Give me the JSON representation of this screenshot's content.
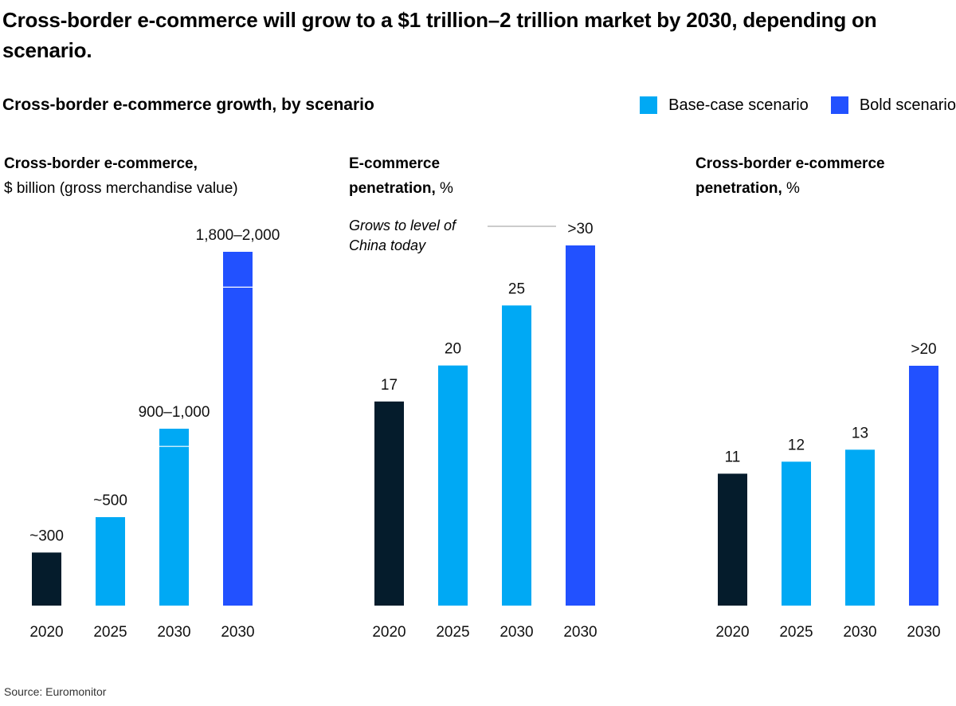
{
  "title": "Cross-border e-commerce will grow to a $1 trillion–2 trillion market by 2030, depending on scenario.",
  "subtitle": "Cross-border e-commerce growth, by scenario",
  "legend": [
    {
      "label": "Base-case scenario",
      "color": "#00A9F4"
    },
    {
      "label": "Bold scenario",
      "color": "#2251FF"
    }
  ],
  "colors": {
    "actual": "#051C2C",
    "base": "#00A9F4",
    "bold": "#2251FF"
  },
  "source": "Source: Euromonitor",
  "panels": [
    {
      "label_bold": "Cross-border e-commerce,",
      "label_rest": "$ billion (gross merchandise value)"
    },
    {
      "label_bold": "E-commerce penetration,",
      "label_rest": " %"
    },
    {
      "label_bold": "Cross-border e-commerce penetration,",
      "label_rest": " %"
    }
  ],
  "annotation": {
    "line1": "Grows to level of",
    "line2": "China today"
  },
  "chart_data": [
    {
      "type": "bar",
      "title": "Cross-border e-commerce, $ billion (gross merchandise value)",
      "categories": [
        "2020",
        "2025",
        "2030",
        "2030"
      ],
      "scenario": [
        "actual",
        "base",
        "base",
        "bold"
      ],
      "values": [
        300,
        500,
        1000,
        2000
      ],
      "range_low": [
        null,
        null,
        900,
        1800
      ],
      "labels": [
        "~300",
        "~500",
        "900–1,000",
        "1,800–2,000"
      ],
      "ylim": [
        0,
        2000
      ]
    },
    {
      "type": "bar",
      "title": "E-commerce penetration, %",
      "categories": [
        "2020",
        "2025",
        "2030",
        "2030"
      ],
      "scenario": [
        "actual",
        "base",
        "base",
        "bold"
      ],
      "values": [
        17,
        20,
        25,
        30
      ],
      "labels": [
        "17",
        "20",
        "25",
        ">30"
      ],
      "annotation": "Grows to level of China today",
      "ylim": [
        0,
        30
      ]
    },
    {
      "type": "bar",
      "title": "Cross-border e-commerce penetration, %",
      "categories": [
        "2020",
        "2025",
        "2030",
        "2030"
      ],
      "scenario": [
        "actual",
        "base",
        "base",
        "bold"
      ],
      "values": [
        11,
        12,
        13,
        20
      ],
      "labels": [
        "11",
        "12",
        "13",
        ">20"
      ],
      "ylim": [
        0,
        20
      ]
    }
  ]
}
